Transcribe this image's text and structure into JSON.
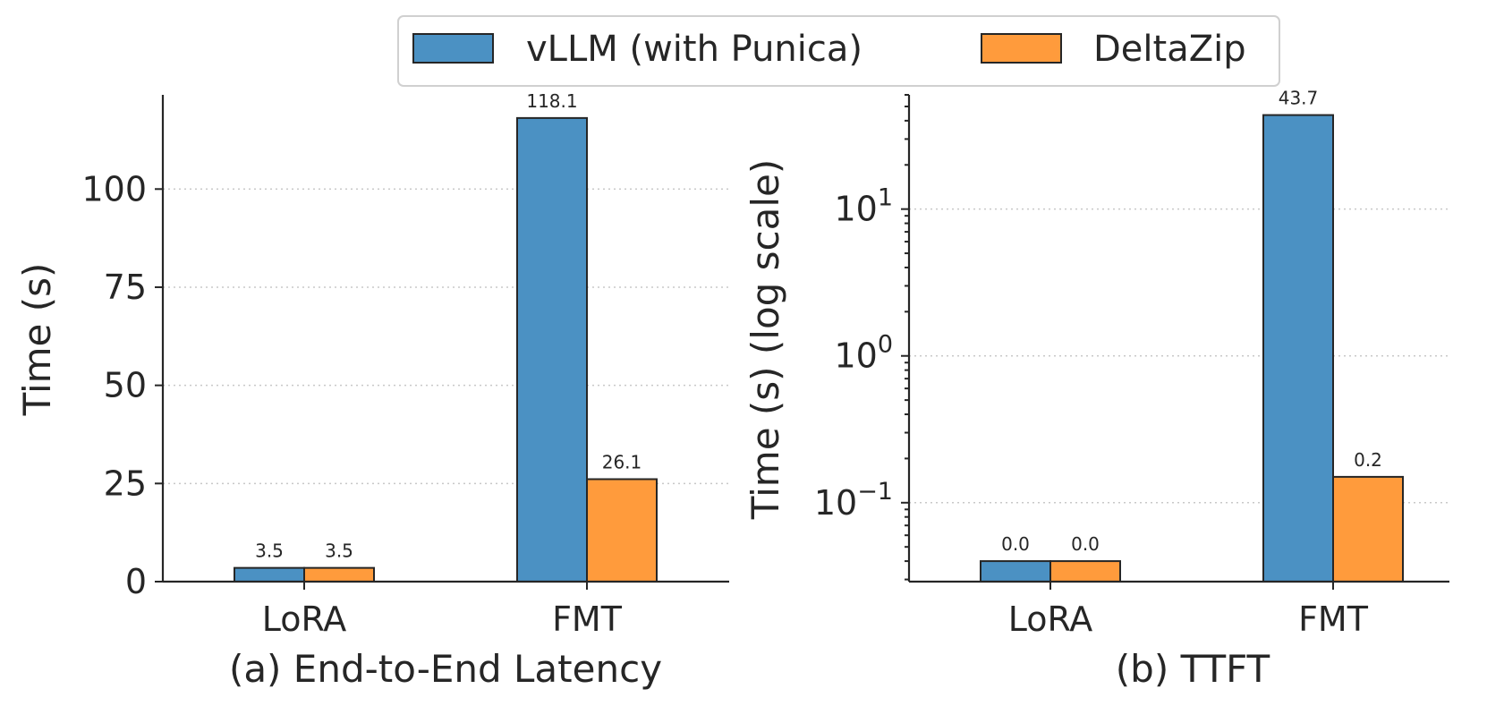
{
  "legend": {
    "entries": [
      {
        "label": "vLLM (with Punica)",
        "color": "#4b91c3"
      },
      {
        "label": "DeltaZip",
        "color": "#ff9b3c"
      }
    ],
    "placement": "top-center"
  },
  "chart_data": [
    {
      "type": "bar",
      "title": "",
      "xlabel": "(a) End-to-End Latency",
      "ylabel": "Time (s)",
      "yscale": "linear",
      "ylim": [
        0,
        124
      ],
      "yticks": [
        0,
        25,
        50,
        75,
        100
      ],
      "ytick_labels": [
        "0",
        "25",
        "50",
        "75",
        "100"
      ],
      "grid": "y-dotted",
      "categories": [
        "LoRA",
        "FMT"
      ],
      "series": [
        {
          "name": "vLLM (with Punica)",
          "values": [
            3.5,
            118.1
          ],
          "labels": [
            "3.5",
            "118.1"
          ]
        },
        {
          "name": "DeltaZip",
          "values": [
            3.5,
            26.1
          ],
          "labels": [
            "3.5",
            "26.1"
          ]
        }
      ]
    },
    {
      "type": "bar",
      "title": "",
      "xlabel": "(b) TTFT",
      "ylabel": "Time (s) (log scale)",
      "yscale": "log",
      "ylim": [
        0.029,
        60
      ],
      "yticks": [
        0.1,
        1,
        10
      ],
      "ytick_labels": [
        {
          "base": "10",
          "exp": "−1"
        },
        {
          "base": "10",
          "exp": "0"
        },
        {
          "base": "10",
          "exp": "1"
        }
      ],
      "grid": "y-dotted",
      "categories": [
        "LoRA",
        "FMT"
      ],
      "series": [
        {
          "name": "vLLM (with Punica)",
          "values": [
            0.04,
            43.7
          ],
          "labels": [
            "0.0",
            "43.7"
          ]
        },
        {
          "name": "DeltaZip",
          "values": [
            0.04,
            0.15
          ],
          "labels": [
            "0.0",
            "0.2"
          ]
        }
      ]
    }
  ]
}
